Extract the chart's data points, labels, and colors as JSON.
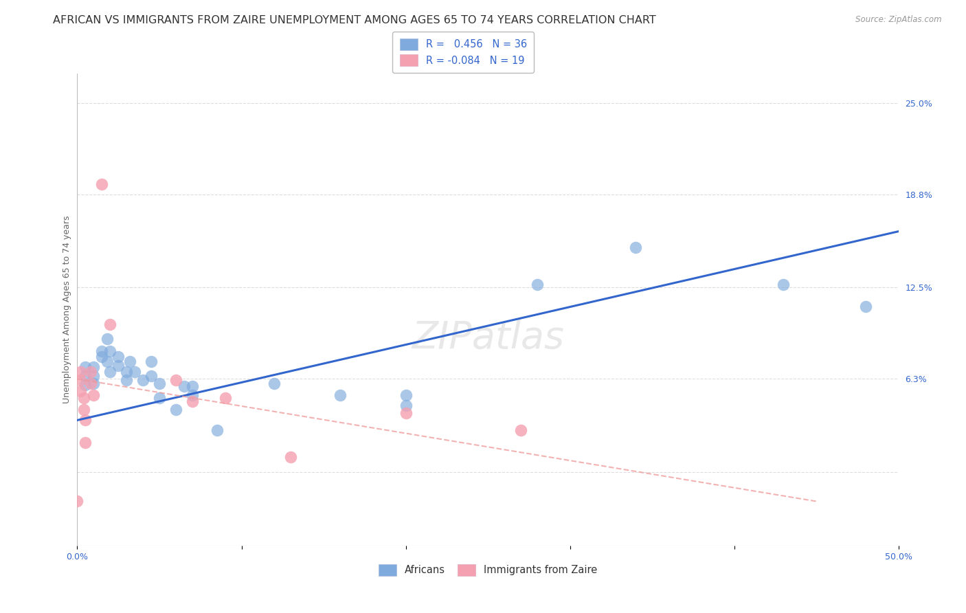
{
  "title": "AFRICAN VS IMMIGRANTS FROM ZAIRE UNEMPLOYMENT AMONG AGES 65 TO 74 YEARS CORRELATION CHART",
  "source": "Source: ZipAtlas.com",
  "ylabel": "Unemployment Among Ages 65 to 74 years",
  "xlim": [
    0.0,
    0.5
  ],
  "ylim": [
    -0.05,
    0.27
  ],
  "xtick_pos": [
    0.0,
    0.1,
    0.2,
    0.3,
    0.4,
    0.5
  ],
  "xtick_labels": [
    "0.0%",
    "",
    "",
    "",
    "",
    "50.0%"
  ],
  "ytick_values": [
    0.25,
    0.188,
    0.125,
    0.063,
    0.0
  ],
  "ytick_labels": [
    "25.0%",
    "18.8%",
    "12.5%",
    "6.3%",
    ""
  ],
  "african_color": "#7eaadd",
  "zaire_color": "#f4a0b0",
  "african_R": 0.456,
  "african_N": 36,
  "zaire_R": -0.084,
  "zaire_N": 19,
  "watermark": "ZIPatlas",
  "african_points": [
    [
      0.005,
      0.071
    ],
    [
      0.005,
      0.059
    ],
    [
      0.005,
      0.065
    ],
    [
      0.01,
      0.071
    ],
    [
      0.01,
      0.065
    ],
    [
      0.01,
      0.06
    ],
    [
      0.015,
      0.082
    ],
    [
      0.015,
      0.078
    ],
    [
      0.018,
      0.09
    ],
    [
      0.018,
      0.075
    ],
    [
      0.02,
      0.082
    ],
    [
      0.02,
      0.068
    ],
    [
      0.025,
      0.078
    ],
    [
      0.025,
      0.072
    ],
    [
      0.03,
      0.068
    ],
    [
      0.03,
      0.062
    ],
    [
      0.032,
      0.075
    ],
    [
      0.035,
      0.068
    ],
    [
      0.04,
      0.062
    ],
    [
      0.045,
      0.075
    ],
    [
      0.045,
      0.065
    ],
    [
      0.05,
      0.06
    ],
    [
      0.05,
      0.05
    ],
    [
      0.06,
      0.042
    ],
    [
      0.065,
      0.058
    ],
    [
      0.07,
      0.058
    ],
    [
      0.07,
      0.052
    ],
    [
      0.085,
      0.028
    ],
    [
      0.12,
      0.06
    ],
    [
      0.16,
      0.052
    ],
    [
      0.2,
      0.052
    ],
    [
      0.2,
      0.045
    ],
    [
      0.28,
      0.127
    ],
    [
      0.34,
      0.152
    ],
    [
      0.43,
      0.127
    ],
    [
      0.48,
      0.112
    ]
  ],
  "zaire_points": [
    [
      0.002,
      0.068
    ],
    [
      0.002,
      0.062
    ],
    [
      0.002,
      0.055
    ],
    [
      0.004,
      0.05
    ],
    [
      0.004,
      0.042
    ],
    [
      0.005,
      0.035
    ],
    [
      0.005,
      0.02
    ],
    [
      0.008,
      0.068
    ],
    [
      0.008,
      0.06
    ],
    [
      0.01,
      0.052
    ],
    [
      0.015,
      0.195
    ],
    [
      0.02,
      0.1
    ],
    [
      0.06,
      0.062
    ],
    [
      0.07,
      0.048
    ],
    [
      0.09,
      0.05
    ],
    [
      0.13,
      0.01
    ],
    [
      0.2,
      0.04
    ],
    [
      0.27,
      0.028
    ],
    [
      0.0,
      -0.02
    ]
  ],
  "african_line_x": [
    0.0,
    0.5
  ],
  "african_line_y": [
    0.035,
    0.163
  ],
  "zaire_line_x": [
    0.0,
    0.45
  ],
  "zaire_line_y": [
    0.063,
    -0.02
  ],
  "african_line_color": "#3366cc",
  "zaire_line_color": "#ee9999",
  "grid_color": "#dddddd",
  "bg_color": "#ffffff",
  "title_fontsize": 11.5,
  "label_fontsize": 9,
  "legend_fontsize": 10.5
}
